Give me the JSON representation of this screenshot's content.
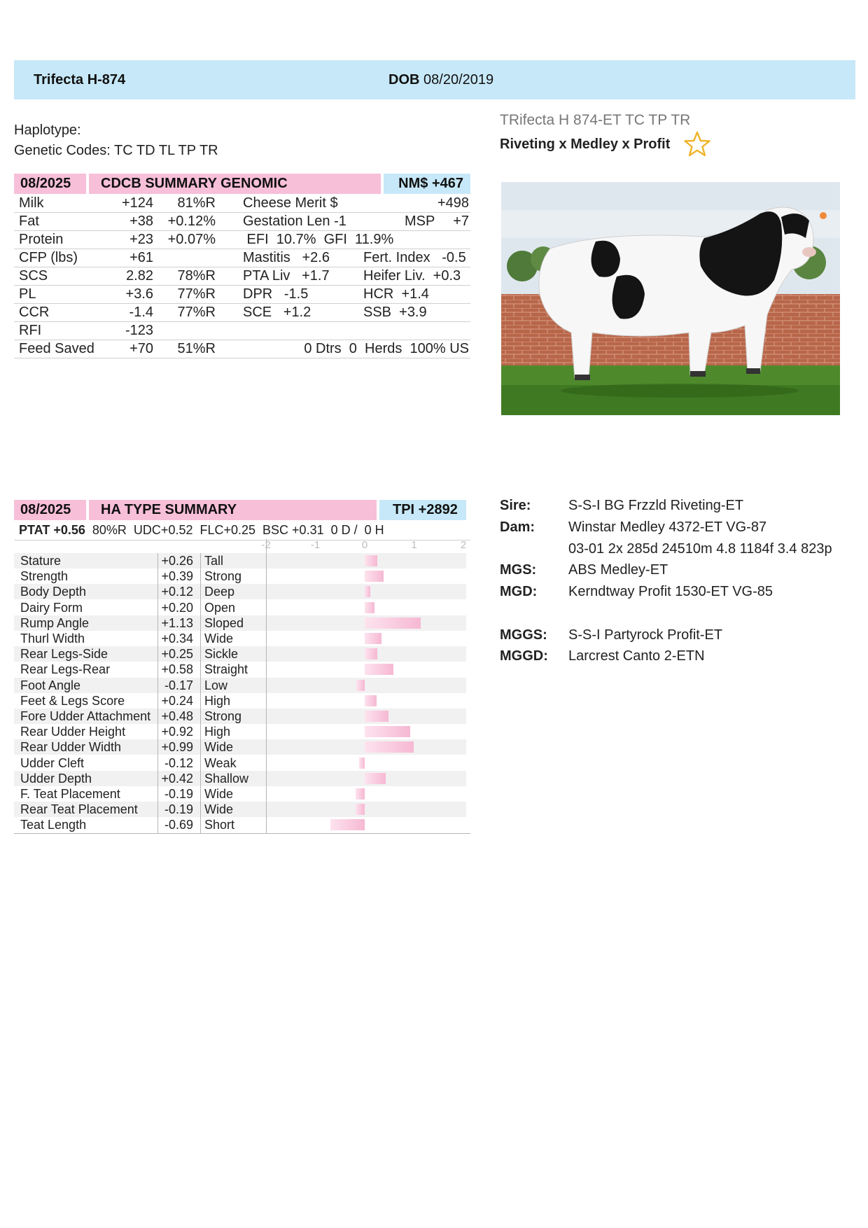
{
  "header": {
    "name": "Trifecta H-874",
    "dob_label": "DOB",
    "dob_value": "08/20/2019"
  },
  "haplotype": "Haplotype:",
  "genetic_codes": "Genetic Codes: TC TD TL TP TR",
  "registration_name": "TRifecta H 874-ET  TC TP TR",
  "pedigree_line": "Riveting x Medley x Profit",
  "icons": {
    "star": "star-outline-icon",
    "star_color": "#f0b429"
  },
  "genomic": {
    "date": "08/2025",
    "title": "CDCB SUMMARY GENOMIC",
    "index": "NM$ +467",
    "rows": [
      {
        "trait": "Milk",
        "value": "+124",
        "rel": "81%R",
        "c3": "Cheese Merit $",
        "c4": "",
        "c5": "+498"
      },
      {
        "trait": "Fat",
        "value": "+38",
        "rel": "+0.12%",
        "c3": "Gestation Len -1",
        "c4": "MSP",
        "c5": "+7"
      },
      {
        "trait": "Protein",
        "value": "+23",
        "rel": "+0.07%",
        "c3": " EFI  10.7%  GFI  11.9%",
        "c4": "",
        "c5": ""
      },
      {
        "trait": "CFP (lbs)",
        "value": "+61",
        "rel": "",
        "c3": "Mastitis   +2.6",
        "c4": "Fert. Index   -0.5",
        "c5": ""
      },
      {
        "trait": "SCS",
        "value": "2.82",
        "rel": "78%R",
        "c3": "PTA Liv   +1.7",
        "c4": "Heifer Liv.  +0.3",
        "c5": ""
      },
      {
        "trait": "PL",
        "value": "+3.6",
        "rel": "77%R",
        "c3": "DPR   -1.5",
        "c4": "HCR  +1.4",
        "c5": ""
      },
      {
        "trait": "CCR",
        "value": "-1.4",
        "rel": "77%R",
        "c3": "SCE   +1.2",
        "c4": "SSB  +3.9",
        "c5": ""
      },
      {
        "trait": "RFI",
        "value": "-123",
        "rel": "",
        "c3": "",
        "c4": "",
        "c5": ""
      },
      {
        "trait": "Feed Saved",
        "value": "+70",
        "rel": "51%R",
        "c3": "",
        "c4": "",
        "c5": "0 Dtrs  0  Herds  100% US"
      }
    ]
  },
  "type_summary": {
    "date": "08/2025",
    "title": "HA TYPE SUMMARY",
    "index": "TPI +2892",
    "ptat_label": "PTAT",
    "ptat_value": "+0.56",
    "ptat_rest": "80%R  UDC+0.52  FLC+0.25  BSC +0.31  0 D /  0 H",
    "axis_ticks": [
      "-2",
      "-1",
      "0",
      "1",
      "2"
    ],
    "axis_range": [
      -2,
      2
    ],
    "traits": [
      {
        "name": "Stature",
        "value": "+0.26",
        "desc": "Tall",
        "num": 0.26
      },
      {
        "name": "Strength",
        "value": "+0.39",
        "desc": "Strong",
        "num": 0.39
      },
      {
        "name": "Body Depth",
        "value": "+0.12",
        "desc": "Deep",
        "num": 0.12
      },
      {
        "name": "Dairy Form",
        "value": "+0.20",
        "desc": "Open",
        "num": 0.2
      },
      {
        "name": "Rump Angle",
        "value": "+1.13",
        "desc": "Sloped",
        "num": 1.13
      },
      {
        "name": "Thurl Width",
        "value": "+0.34",
        "desc": "Wide",
        "num": 0.34
      },
      {
        "name": "Rear Legs-Side",
        "value": "+0.25",
        "desc": "Sickle",
        "num": 0.25
      },
      {
        "name": "Rear Legs-Rear",
        "value": "+0.58",
        "desc": "Straight",
        "num": 0.58
      },
      {
        "name": "Foot Angle",
        "value": "-0.17",
        "desc": "Low",
        "num": -0.17
      },
      {
        "name": "Feet & Legs Score",
        "value": "+0.24",
        "desc": "High",
        "num": 0.24
      },
      {
        "name": "Fore Udder Attachment",
        "value": "+0.48",
        "desc": "Strong",
        "num": 0.48
      },
      {
        "name": "Rear Udder Height",
        "value": "+0.92",
        "desc": "High",
        "num": 0.92
      },
      {
        "name": "Rear Udder Width",
        "value": "+0.99",
        "desc": "Wide",
        "num": 0.99
      },
      {
        "name": "Udder Cleft",
        "value": "-0.12",
        "desc": "Weak",
        "num": -0.12
      },
      {
        "name": "Udder Depth",
        "value": "+0.42",
        "desc": "Shallow",
        "num": 0.42
      },
      {
        "name": "F. Teat Placement",
        "value": "-0.19",
        "desc": "Wide",
        "num": -0.19
      },
      {
        "name": "Rear Teat Placement",
        "value": "-0.19",
        "desc": "Wide",
        "num": -0.19
      },
      {
        "name": "Teat Length",
        "value": "-0.69",
        "desc": "Short",
        "num": -0.69
      }
    ]
  },
  "pedigree": {
    "sire_label": "Sire:",
    "sire": "S-S-I BG Frzzld Riveting-ET",
    "dam_label": "Dam:",
    "dam": "Winstar Medley 4372-ET VG-87",
    "dam_record": "03-01 2x 285d 24510m 4.8 1184f 3.4 823p",
    "mgs_label": "MGS:",
    "mgs": "ABS Medley-ET",
    "mgd_label": "MGD:",
    "mgd": "Kerndtway Profit 1530-ET VG-85",
    "mggs_label": "MGGS:",
    "mggs": "S-S-I Partyrock Profit-ET",
    "mggd_label": "MGGD:",
    "mggd": "Larcrest Canto 2-ETN"
  }
}
